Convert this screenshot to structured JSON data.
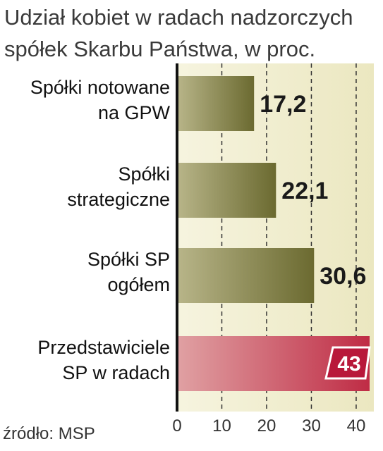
{
  "chart_data": {
    "type": "bar",
    "orientation": "horizontal",
    "title_lines": [
      "Udział kobiet w radach nadzorczych",
      "spółek Skarbu Państwa, w proc."
    ],
    "categories": [
      [
        "Spółki notowane",
        "na GPW"
      ],
      [
        "Spółki",
        "strategiczne"
      ],
      [
        "Spółki SP",
        "ogółem"
      ],
      [
        "Przedstawiciele",
        "SP w radach"
      ]
    ],
    "values": [
      17.2,
      22.1,
      30.6,
      43
    ],
    "value_labels": [
      "17,2",
      "22,1",
      "30,6",
      "43"
    ],
    "highlight_index": 3,
    "xlim": [
      0,
      43
    ],
    "xticks": [
      0,
      10,
      20,
      30,
      40
    ],
    "grid": "vertical-dashed",
    "source": "źródło: MSP",
    "colors": {
      "bar": "#7a7a3e",
      "highlight": "#c23a4e",
      "background": "#f3f1d6",
      "label_box": "#b8183a"
    }
  }
}
